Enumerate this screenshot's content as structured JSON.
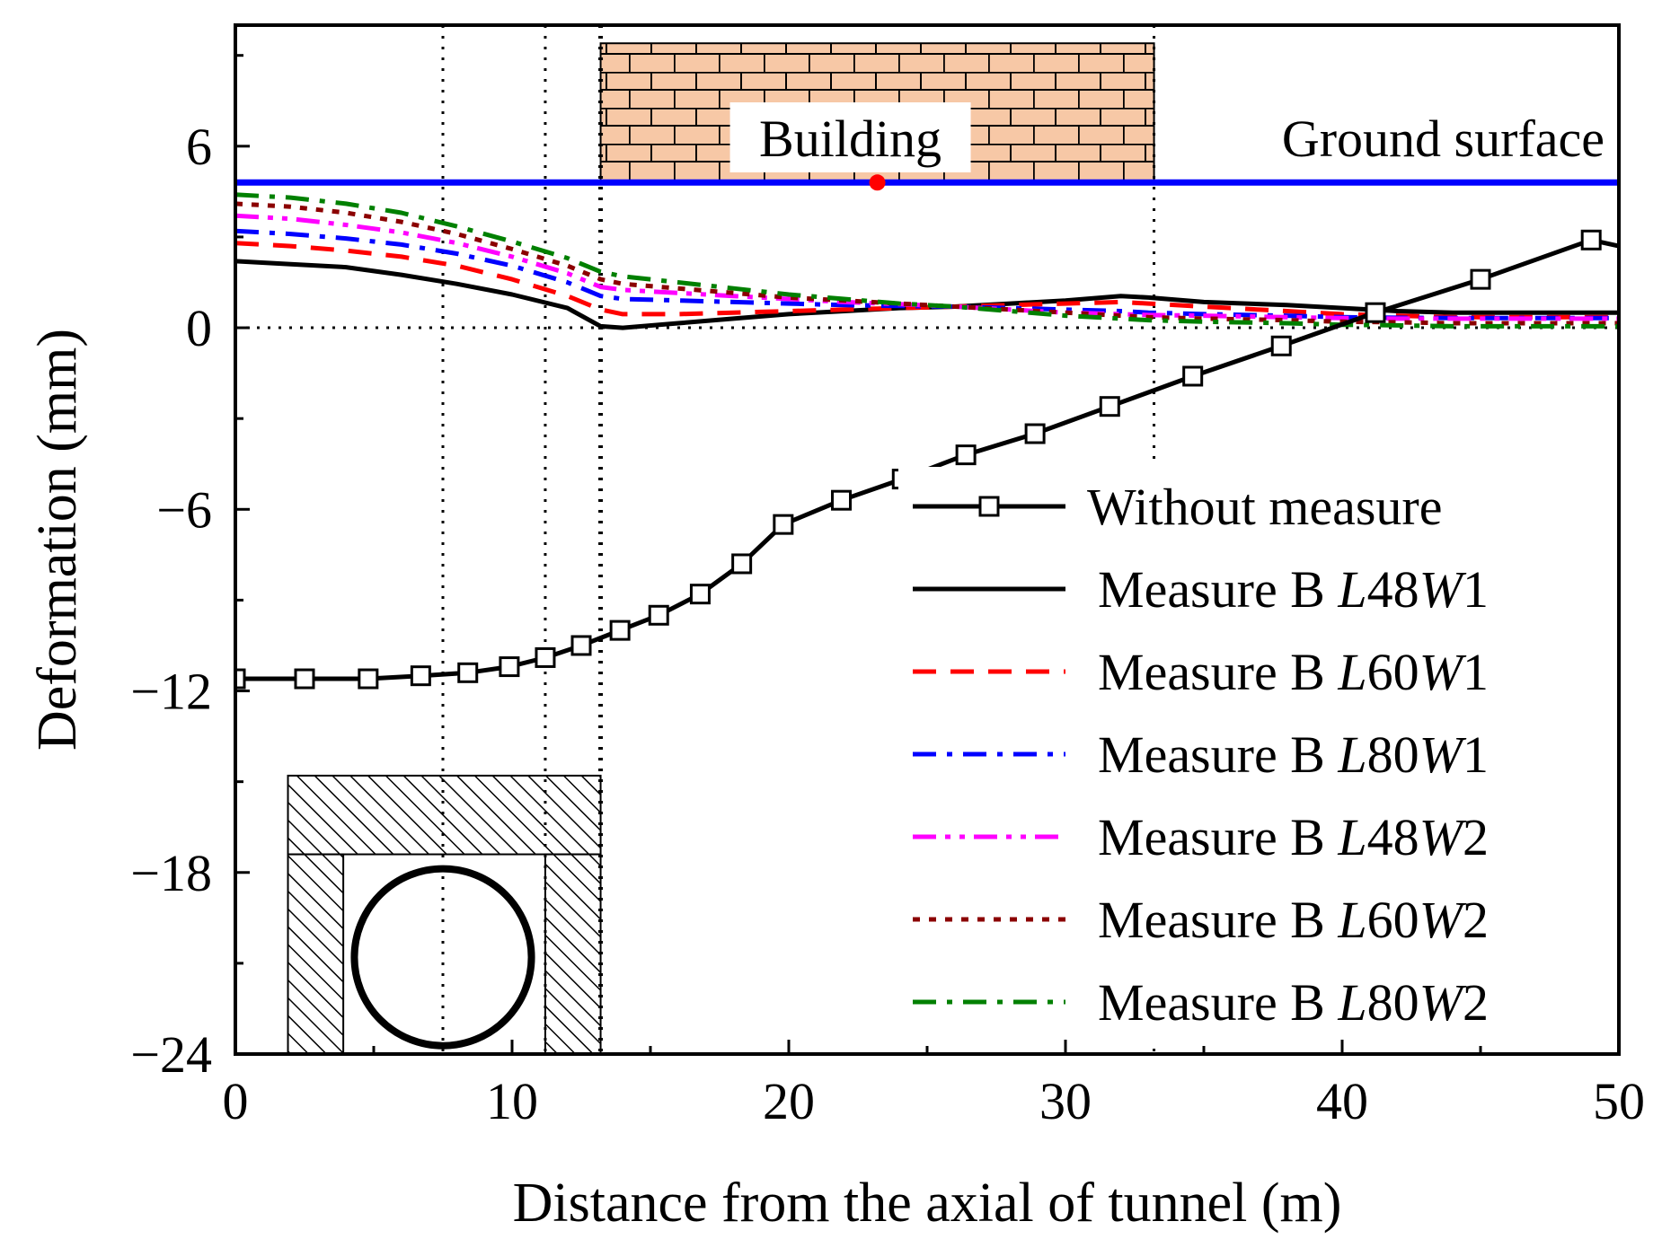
{
  "chart_data": {
    "type": "line",
    "title": "",
    "xlabel": "Distance from the axial of tunnel (m)",
    "ylabel": "Deformation (mm)",
    "xlim": [
      0,
      50
    ],
    "ylim": [
      -24,
      10
    ],
    "xticks": [
      0,
      10,
      20,
      30,
      40,
      50
    ],
    "xtick_labels": [
      "0",
      "10",
      "20",
      "30",
      "40",
      "50"
    ],
    "yticks": [
      -24,
      -18,
      -12,
      -6,
      0,
      6
    ],
    "ytick_labels": [
      "−24",
      "−18",
      "−12",
      "−6",
      "0",
      "6"
    ],
    "grid": false,
    "legend_position": "bottom-right",
    "series": [
      {
        "name": "Without measure",
        "prefix": "Without measure",
        "L": "",
        "W": "",
        "color": "#000000",
        "style": "solid-square-marker",
        "x": [
          0,
          2.5,
          4.8,
          6.7,
          8.4,
          9.9,
          11.2,
          12.5,
          13.9,
          15.3,
          16.8,
          18.3,
          19.8,
          21.9,
          24.1,
          26.4,
          28.9,
          31.6,
          34.6,
          37.8,
          41.2,
          45.0,
          49.0,
          50.0
        ],
        "y": [
          -11.6,
          -11.6,
          -11.6,
          -11.5,
          -11.4,
          -11.2,
          -10.9,
          -10.5,
          -10.0,
          -9.5,
          -8.8,
          -7.8,
          -6.5,
          -5.7,
          -5.0,
          -4.2,
          -3.5,
          -2.6,
          -1.6,
          -0.6,
          0.5,
          1.6,
          2.9,
          2.7
        ]
      },
      {
        "name": "Measure B L48W1",
        "prefix": "Measure B ",
        "L": "48",
        "W": "1",
        "color": "#000000",
        "style": "solid",
        "x": [
          0,
          2,
          4,
          6,
          8,
          10,
          12,
          13.2,
          14,
          16,
          18,
          20,
          22,
          24,
          26,
          28,
          30,
          32,
          33,
          35,
          38,
          40,
          42,
          44,
          46,
          48,
          50
        ],
        "y": [
          2.2,
          2.1,
          2.0,
          1.75,
          1.45,
          1.1,
          0.65,
          0.05,
          0.0,
          0.15,
          0.3,
          0.45,
          0.55,
          0.65,
          0.7,
          0.8,
          0.9,
          1.05,
          1.0,
          0.85,
          0.75,
          0.65,
          0.55,
          0.5,
          0.5,
          0.5,
          0.5
        ]
      },
      {
        "name": "Measure B L60W1",
        "prefix": "Measure B ",
        "L": "60",
        "W": "1",
        "color": "#ff0000",
        "style": "dash",
        "x": [
          0,
          2,
          4,
          6,
          8,
          10,
          12,
          13.2,
          14,
          16,
          18,
          20,
          22,
          24,
          26,
          28,
          30,
          32,
          33,
          35,
          38,
          40,
          42,
          44,
          46,
          48,
          50
        ],
        "y": [
          2.8,
          2.7,
          2.55,
          2.35,
          2.05,
          1.6,
          1.05,
          0.6,
          0.45,
          0.45,
          0.5,
          0.55,
          0.6,
          0.65,
          0.7,
          0.75,
          0.8,
          0.85,
          0.8,
          0.7,
          0.55,
          0.45,
          0.4,
          0.35,
          0.35,
          0.35,
          0.35
        ]
      },
      {
        "name": "Measure B L80W1",
        "prefix": "Measure B ",
        "L": "80",
        "W": "1",
        "color": "#0000ff",
        "style": "dashdot",
        "x": [
          0,
          2,
          4,
          6,
          8,
          10,
          12,
          13.2,
          14,
          16,
          18,
          20,
          22,
          24,
          26,
          28,
          30,
          32,
          33,
          35,
          38,
          40,
          42,
          44,
          46,
          48,
          50
        ],
        "y": [
          3.2,
          3.1,
          2.95,
          2.75,
          2.45,
          2.05,
          1.5,
          1.05,
          0.95,
          0.9,
          0.85,
          0.8,
          0.75,
          0.72,
          0.7,
          0.65,
          0.6,
          0.55,
          0.5,
          0.45,
          0.4,
          0.35,
          0.33,
          0.32,
          0.32,
          0.32,
          0.32
        ]
      },
      {
        "name": "Measure B L48W2",
        "prefix": "Measure B ",
        "L": "48",
        "W": "2",
        "color": "#ff00ff",
        "style": "dashdotdot",
        "x": [
          0,
          2,
          4,
          6,
          8,
          10,
          12,
          13.2,
          14,
          16,
          18,
          20,
          22,
          24,
          26,
          28,
          30,
          32,
          33,
          35,
          38,
          40,
          42,
          44,
          46,
          48,
          50
        ],
        "y": [
          3.7,
          3.6,
          3.4,
          3.15,
          2.8,
          2.35,
          1.8,
          1.35,
          1.25,
          1.15,
          1.05,
          0.95,
          0.85,
          0.78,
          0.7,
          0.6,
          0.5,
          0.45,
          0.42,
          0.4,
          0.35,
          0.32,
          0.3,
          0.3,
          0.3,
          0.3,
          0.3
        ]
      },
      {
        "name": "Measure B L60W2",
        "prefix": "Measure B ",
        "L": "60",
        "W": "2",
        "color": "#8b0000",
        "style": "dot",
        "x": [
          0,
          2,
          4,
          6,
          8,
          10,
          12,
          13.2,
          14,
          16,
          18,
          20,
          22,
          24,
          26,
          28,
          30,
          32,
          33,
          35,
          38,
          40,
          42,
          44,
          46,
          48,
          50
        ],
        "y": [
          4.1,
          4.0,
          3.8,
          3.5,
          3.1,
          2.6,
          2.05,
          1.6,
          1.45,
          1.3,
          1.15,
          1.0,
          0.9,
          0.8,
          0.7,
          0.6,
          0.5,
          0.4,
          0.35,
          0.3,
          0.25,
          0.2,
          0.18,
          0.15,
          0.15,
          0.15,
          0.15
        ]
      },
      {
        "name": "Measure B L80W2",
        "prefix": "Measure B ",
        "L": "80",
        "W": "2",
        "color": "#008000",
        "style": "dashdot",
        "x": [
          0,
          2,
          4,
          6,
          8,
          10,
          12,
          13.2,
          14,
          16,
          18,
          20,
          22,
          24,
          26,
          28,
          30,
          32,
          33,
          35,
          38,
          40,
          42,
          44,
          46,
          48,
          50
        ],
        "y": [
          4.4,
          4.3,
          4.1,
          3.8,
          3.35,
          2.85,
          2.3,
          1.85,
          1.7,
          1.5,
          1.3,
          1.1,
          0.95,
          0.8,
          0.7,
          0.55,
          0.4,
          0.3,
          0.25,
          0.2,
          0.15,
          0.1,
          0.08,
          0.05,
          0.05,
          0.05,
          0.05
        ]
      }
    ],
    "annotations": {
      "building_label": "Building",
      "ground_label": "Ground surface",
      "ground_level": 4.8,
      "building_x_range": [
        13.2,
        33.2
      ],
      "building_top": 9.4,
      "building_point_x": 23.2,
      "vertical_lines_x": [
        7.5,
        11.2,
        13.2,
        33.2
      ],
      "tunnel_outer_x": [
        1.9,
        13.2
      ],
      "tunnel_wall_width": 2.0,
      "tunnel_slab_range": [
        -17.4,
        -14.8
      ],
      "tunnel_circle_center": [
        7.5,
        -20.8
      ],
      "tunnel_circle_radius": 3.2
    }
  }
}
